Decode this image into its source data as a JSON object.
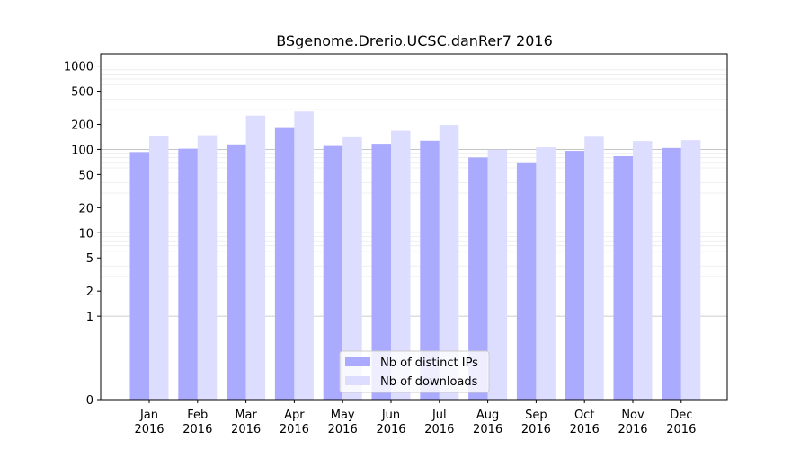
{
  "chart_data": {
    "type": "bar",
    "title": "BSgenome.Drerio.UCSC.danRer7 2016",
    "xlabel": "",
    "ylabel": "",
    "y_scale": "symlog",
    "ylim": [
      0,
      1400
    ],
    "y_ticks": [
      0,
      1,
      2,
      5,
      10,
      20,
      50,
      100,
      200,
      500,
      1000
    ],
    "y_tick_labels": [
      "0",
      "1",
      "2",
      "5",
      "10",
      "20",
      "50",
      "100",
      "200",
      "500",
      "1000"
    ],
    "grid": true,
    "legend_position": "bottom-center",
    "categories": [
      {
        "month": "Jan",
        "year": "2016"
      },
      {
        "month": "Feb",
        "year": "2016"
      },
      {
        "month": "Mar",
        "year": "2016"
      },
      {
        "month": "Apr",
        "year": "2016"
      },
      {
        "month": "May",
        "year": "2016"
      },
      {
        "month": "Jun",
        "year": "2016"
      },
      {
        "month": "Jul",
        "year": "2016"
      },
      {
        "month": "Aug",
        "year": "2016"
      },
      {
        "month": "Sep",
        "year": "2016"
      },
      {
        "month": "Oct",
        "year": "2016"
      },
      {
        "month": "Nov",
        "year": "2016"
      },
      {
        "month": "Dec",
        "year": "2016"
      }
    ],
    "series": [
      {
        "name": "Nb of distinct IPs",
        "color": "#aaaaff",
        "values": [
          93,
          102,
          115,
          185,
          110,
          117,
          127,
          80,
          70,
          96,
          83,
          104
        ]
      },
      {
        "name": "Nb of downloads",
        "color": "#ddddff",
        "values": [
          145,
          148,
          255,
          285,
          140,
          168,
          197,
          99,
          106,
          142,
          126,
          129
        ]
      }
    ]
  }
}
